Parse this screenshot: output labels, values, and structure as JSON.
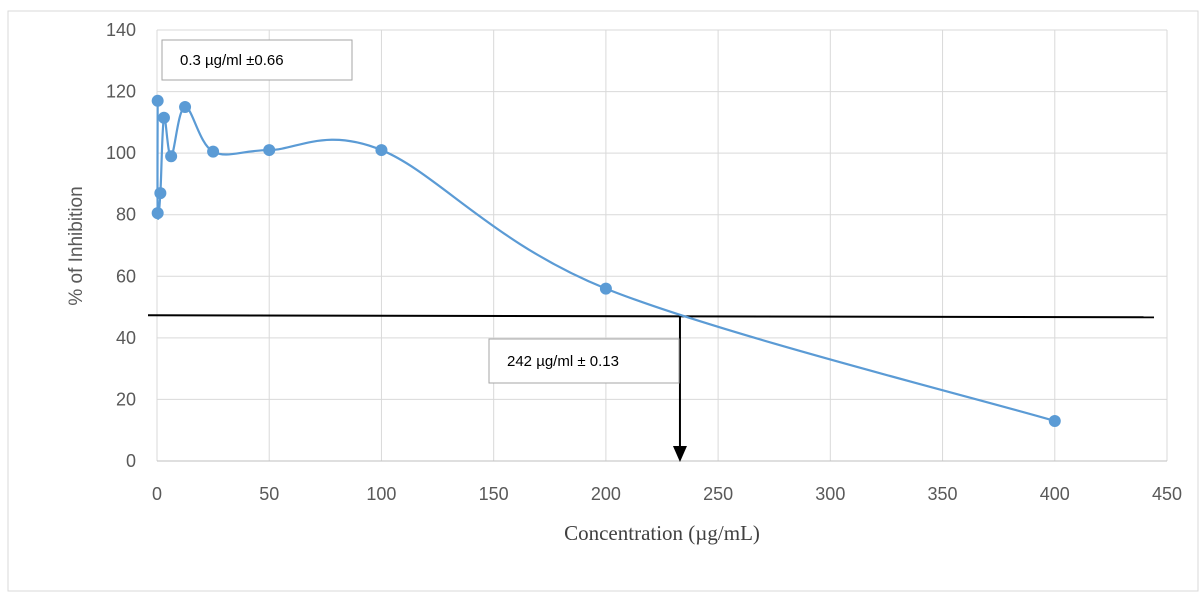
{
  "chart_data": {
    "type": "line",
    "xlabel": "Concentration (µg/mL)",
    "ylabel": "% of Inhibition",
    "xlim": [
      0,
      450
    ],
    "ylim": [
      0,
      140
    ],
    "x_ticks": [
      0,
      50,
      100,
      150,
      200,
      250,
      300,
      350,
      400,
      450
    ],
    "y_ticks": [
      0,
      20,
      40,
      60,
      80,
      100,
      120,
      140
    ],
    "grid": true,
    "smoothed": true,
    "legend": "none",
    "series": [
      {
        "color": "#5b9bd5",
        "points": [
          {
            "x": 0.3,
            "y": 117
          },
          {
            "x": 0.3,
            "y": 80.5
          },
          {
            "x": 1.5,
            "y": 87
          },
          {
            "x": 3.1,
            "y": 111.5
          },
          {
            "x": 6.3,
            "y": 99
          },
          {
            "x": 12.5,
            "y": 115
          },
          {
            "x": 25,
            "y": 100.5
          },
          {
            "x": 50,
            "y": 101
          },
          {
            "x": 100,
            "y": 101
          },
          {
            "x": 200,
            "y": 56
          },
          {
            "x": 400,
            "y": 13
          }
        ]
      }
    ],
    "reference_line": {
      "y": 47,
      "color": "#000000"
    },
    "ic50_marker": {
      "x": 233,
      "y": 47
    },
    "annotations": [
      {
        "text": "0.3 µg/ml ±0.66"
      },
      {
        "text": "242 µg/ml ± 0.13"
      }
    ]
  }
}
